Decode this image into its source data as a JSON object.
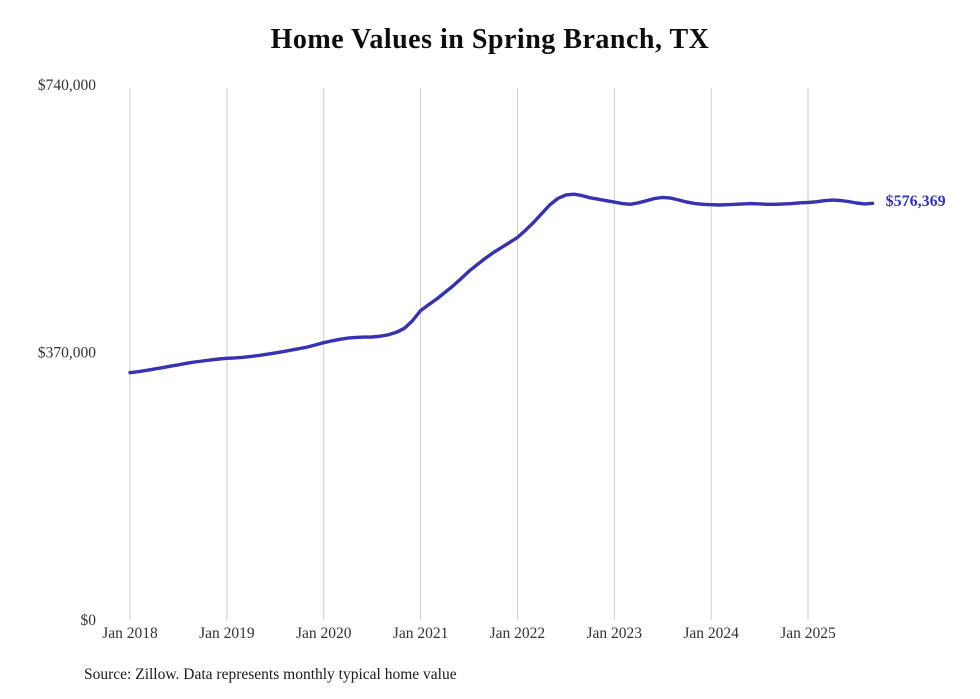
{
  "source_note": "Source: Zillow. Data represents monthly typical home value",
  "chart_data": {
    "type": "line",
    "title": "Home Values in Spring Branch, TX",
    "series_name": "Monthly typical home value",
    "x_start": "2018-01",
    "x_interval": "monthly",
    "x_tick_labels": [
      "Jan 2018",
      "Jan 2019",
      "Jan 2020",
      "Jan 2021",
      "Jan 2022",
      "Jan 2023",
      "Jan 2024",
      "Jan 2025"
    ],
    "y_ticks": [
      {
        "value": 0,
        "label": "$0"
      },
      {
        "value": 370000,
        "label": "$370,000"
      },
      {
        "value": 740000,
        "label": "$740,000"
      }
    ],
    "ylim": [
      0,
      740000
    ],
    "grid": "vertical-only",
    "legend": "none",
    "line_color": "#3632b2",
    "grid_color": "#cccccc",
    "end_label": "$576,369",
    "end_value": 576369,
    "values": [
      342000,
      343500,
      345200,
      347000,
      349000,
      351000,
      353000,
      355000,
      356800,
      358300,
      359700,
      361000,
      362000,
      362600,
      363400,
      364600,
      366000,
      367600,
      369400,
      371300,
      373300,
      375400,
      377600,
      380500,
      383500,
      386000,
      388200,
      389900,
      390900,
      391300,
      391500,
      392500,
      394500,
      398000,
      403500,
      414000,
      428000,
      436000,
      444000,
      453000,
      462000,
      472000,
      482500,
      491500,
      500000,
      508000,
      515000,
      522000,
      529000,
      539000,
      550000,
      562000,
      574000,
      583000,
      588000,
      589000,
      587000,
      584000,
      582000,
      580000,
      578000,
      576000,
      575000,
      577000,
      580000,
      583000,
      584500,
      583500,
      581000,
      578000,
      576000,
      575000,
      574500,
      574000,
      574500,
      575000,
      575500,
      576000,
      575500,
      575000,
      575000,
      575500,
      576000,
      577000,
      577500,
      578500,
      580000,
      580800,
      580300,
      578800,
      576800,
      575600,
      576369
    ]
  }
}
